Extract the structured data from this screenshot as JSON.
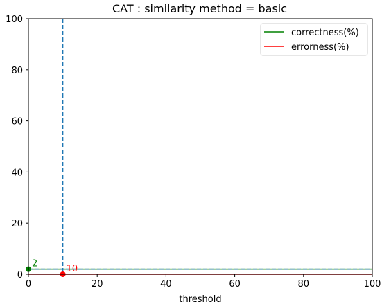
{
  "chart_data": {
    "type": "line",
    "title": "CAT : similarity method = basic",
    "xlabel": "threshold",
    "ylabel": "",
    "xlim": [
      0,
      100
    ],
    "ylim": [
      0,
      100
    ],
    "xticks": [
      "0",
      "20",
      "40",
      "60",
      "80",
      "100"
    ],
    "yticks": [
      "0",
      "20",
      "40",
      "60",
      "80",
      "100"
    ],
    "legend_position": "top-right",
    "series": [
      {
        "name": "correctness(%)",
        "color": "#008000",
        "x": [
          0,
          100
        ],
        "y": [
          2,
          2
        ]
      },
      {
        "name": "errorness(%)",
        "color": "#ff0000",
        "x": [
          0,
          100
        ],
        "y": [
          0,
          0
        ]
      }
    ],
    "reference_lines": {
      "color": "#1f77b4",
      "vertical_x": 10,
      "horizontal_y": 2
    },
    "markers": [
      {
        "x": 0,
        "y": 2,
        "color": "#008000",
        "label": "2"
      },
      {
        "x": 10,
        "y": 0,
        "color": "#ff0000",
        "label": "10"
      }
    ]
  }
}
